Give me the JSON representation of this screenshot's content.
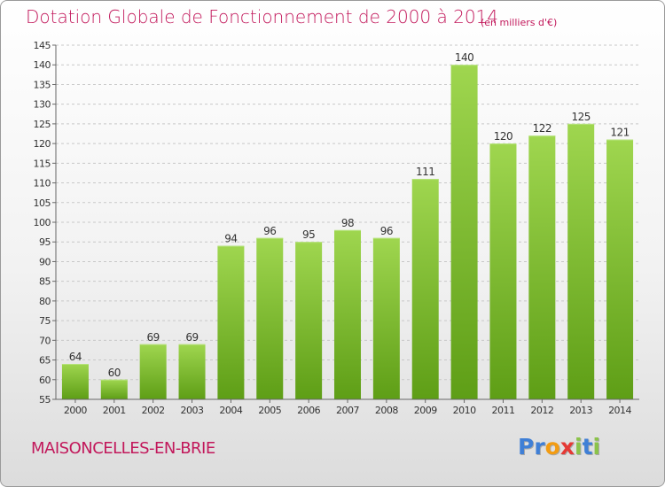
{
  "title": "Dotation Globale de Fonctionnement de 2000 à 2014",
  "subtitle": "(en milliers d'€)",
  "city": "MAISONCELLES-EN-BRIE",
  "logo": {
    "letters": [
      "P",
      "r",
      "o",
      "x",
      "i",
      "t",
      "i"
    ],
    "colors": [
      "#3f7fd6",
      "#3f7fd6",
      "#f39c12",
      "#e53935",
      "#8bc34a",
      "#3f7fd6",
      "#8bc34a"
    ]
  },
  "chart_data": {
    "type": "bar",
    "title": "Dotation Globale de Fonctionnement de 2000 à 2014",
    "subtitle": "(en milliers d'€)",
    "categories": [
      "2000",
      "2001",
      "2002",
      "2003",
      "2004",
      "2005",
      "2006",
      "2007",
      "2008",
      "2009",
      "2010",
      "2011",
      "2012",
      "2013",
      "2014"
    ],
    "values": [
      64,
      60,
      69,
      69,
      94,
      96,
      95,
      98,
      96,
      111,
      140,
      120,
      122,
      125,
      121
    ],
    "ylim": [
      55,
      145
    ],
    "yticks": [
      55,
      60,
      65,
      70,
      75,
      80,
      85,
      90,
      95,
      100,
      105,
      110,
      115,
      120,
      125,
      130,
      135,
      140,
      145
    ],
    "grid": true,
    "bar_color": "#7cc232"
  }
}
